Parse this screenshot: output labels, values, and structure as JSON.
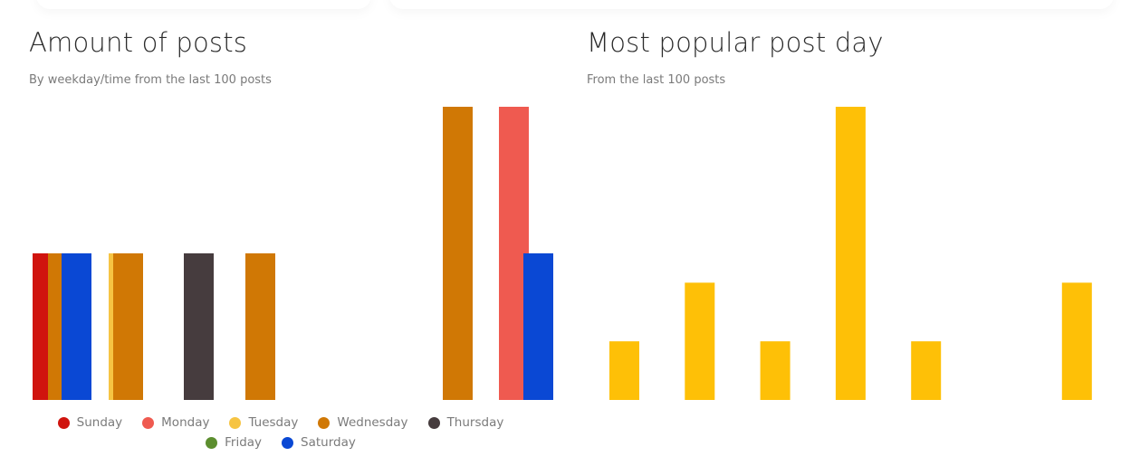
{
  "left_panel": {
    "title": "Amount of posts",
    "subtitle": "By weekday/time from the last 100 posts"
  },
  "right_panel": {
    "title": "Most popular post day",
    "subtitle": "From the last 100 posts"
  },
  "colors": {
    "Sunday": "#d0140e",
    "Monday": "#ef5a50",
    "Tuesday": "#f6c443",
    "Wednesday": "#d07805",
    "Thursday": "#463c3e",
    "Friday": "#5c8e2f",
    "Saturday": "#0a48d4",
    "popular": "#fec007"
  },
  "chart_data": [
    {
      "type": "bar",
      "title": "Amount of posts",
      "subtitle": "By weekday/time from the last 100 posts",
      "ylim": [
        0,
        2
      ],
      "grid": false,
      "legend_position": "bottom",
      "legend": [
        "Sunday",
        "Monday",
        "Tuesday",
        "Wednesday",
        "Thursday",
        "Friday",
        "Saturday"
      ],
      "bars": [
        {
          "slot": 0,
          "series": "Sunday",
          "value": 1
        },
        {
          "slot": 0,
          "series": "Wednesday",
          "value": 1
        },
        {
          "slot": 0,
          "series": "Saturday",
          "value": 1
        },
        {
          "slot": 1,
          "series": "Tuesday",
          "value": 1
        },
        {
          "slot": 1,
          "series": "Wednesday",
          "value": 1
        },
        {
          "slot": 2,
          "series": "Thursday",
          "value": 1
        },
        {
          "slot": 3,
          "series": "Wednesday",
          "value": 1
        },
        {
          "slot": 7,
          "series": "Wednesday",
          "value": 2
        },
        {
          "slot": 8,
          "series": "Monday",
          "value": 2
        },
        {
          "slot": 8,
          "series": "Saturday",
          "value": 1
        }
      ]
    },
    {
      "type": "bar",
      "title": "Most popular post day",
      "subtitle": "From the last 100 posts",
      "ylim": [
        0,
        5
      ],
      "grid": false,
      "series": [
        {
          "values": [
            1,
            2,
            1,
            5,
            1,
            0,
            2
          ]
        }
      ]
    }
  ]
}
